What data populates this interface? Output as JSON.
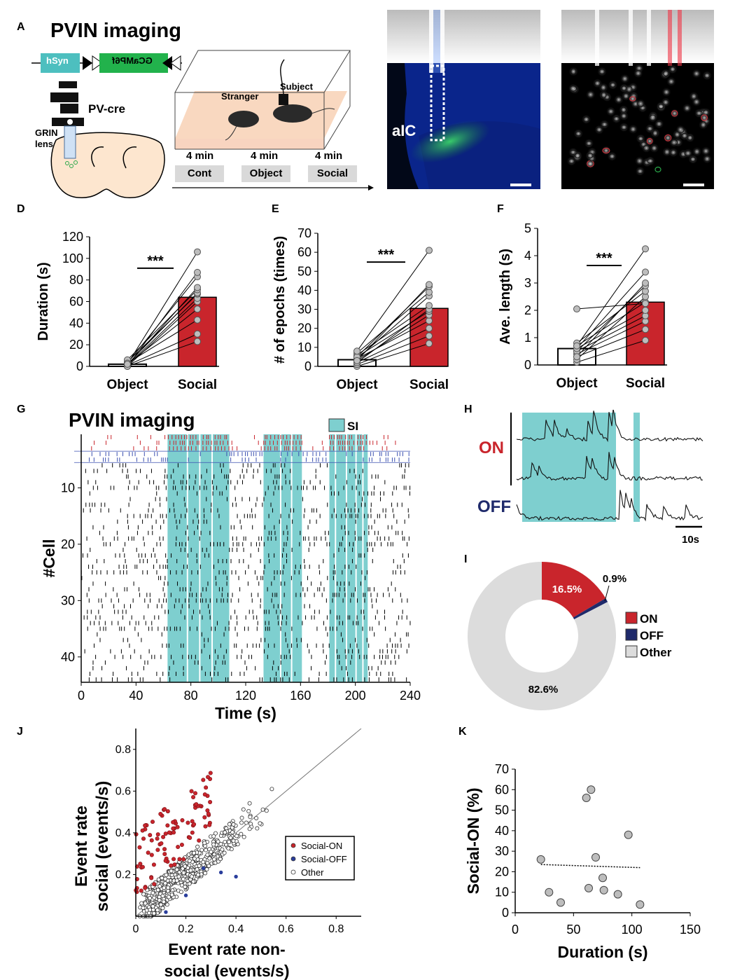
{
  "panels": {
    "A": {
      "letter": "A",
      "title": "PVIN imaging",
      "construct": {
        "promoter": "hSyn",
        "gene": "GCaMP6f"
      },
      "mouse_label": "PV-cre",
      "lens_label_1": "GRIN",
      "lens_label_2": "lens",
      "arena": {
        "stranger": "Stranger",
        "subject": "Subject"
      },
      "timeline": [
        {
          "duration": "4 min",
          "label": "Cont"
        },
        {
          "duration": "4 min",
          "label": "Object"
        },
        {
          "duration": "4 min",
          "label": "Social"
        }
      ],
      "histology_label": "aIC"
    },
    "D": {
      "letter": "D"
    },
    "E": {
      "letter": "E"
    },
    "F": {
      "letter": "F"
    },
    "G": {
      "letter": "G",
      "title": "PVIN imaging",
      "legend": "SI"
    },
    "H": {
      "letter": "H",
      "on": "ON",
      "off": "OFF",
      "scale": "10s"
    },
    "I": {
      "letter": "I"
    },
    "J": {
      "letter": "J"
    },
    "K": {
      "letter": "K"
    }
  },
  "colors": {
    "social_red": "#c9252c",
    "off_navy": "#1f2a6b",
    "si_teal": "#7ecfcf",
    "other_gray": "#dcdcdc"
  },
  "chart_data": [
    {
      "id": "D",
      "type": "bar",
      "ylabel": "Duration (s)",
      "categories": [
        "Object",
        "Social"
      ],
      "values": [
        2,
        64
      ],
      "ylim": [
        0,
        120
      ],
      "yticks": [
        0,
        20,
        40,
        60,
        80,
        100,
        120
      ],
      "significance": "***",
      "pairs": [
        [
          0,
          23
        ],
        [
          1,
          30
        ],
        [
          3,
          43
        ],
        [
          2,
          53
        ],
        [
          0,
          60
        ],
        [
          1,
          63
        ],
        [
          4,
          67
        ],
        [
          2,
          68
        ],
        [
          6,
          71
        ],
        [
          1,
          73
        ],
        [
          3,
          83
        ],
        [
          0,
          87
        ],
        [
          2,
          106
        ]
      ]
    },
    {
      "id": "E",
      "type": "bar",
      "ylabel": "# of epochs (times)",
      "categories": [
        "Object",
        "Social"
      ],
      "values": [
        3.5,
        30.5
      ],
      "ylim": [
        0,
        70
      ],
      "yticks": [
        0,
        10,
        20,
        30,
        40,
        50,
        60,
        70
      ],
      "significance": "***",
      "pairs": [
        [
          0,
          12
        ],
        [
          1,
          16
        ],
        [
          2,
          20
        ],
        [
          4,
          24
        ],
        [
          3,
          27
        ],
        [
          5,
          29
        ],
        [
          2,
          30
        ],
        [
          6,
          32
        ],
        [
          4,
          37
        ],
        [
          7,
          39
        ],
        [
          5,
          42
        ],
        [
          3,
          43
        ],
        [
          8,
          61
        ]
      ]
    },
    {
      "id": "F",
      "type": "bar",
      "ylabel": "Ave. length (s)",
      "categories": [
        "Object",
        "Social"
      ],
      "values": [
        0.6,
        2.3
      ],
      "ylim": [
        0,
        5
      ],
      "yticks": [
        0,
        1,
        2,
        3,
        4,
        5
      ],
      "significance": "***",
      "pairs": [
        [
          0.1,
          0.9
        ],
        [
          0.3,
          1.3
        ],
        [
          0.4,
          1.6
        ],
        [
          0.5,
          1.8
        ],
        [
          0.6,
          2.0
        ],
        [
          0.7,
          2.3
        ],
        [
          0.2,
          2.5
        ],
        [
          0.8,
          2.7
        ],
        [
          0.5,
          2.9
        ],
        [
          0.3,
          3.0
        ],
        [
          2.05,
          2.25
        ],
        [
          0.6,
          3.4
        ],
        [
          0.7,
          4.25
        ]
      ]
    },
    {
      "id": "G",
      "type": "raster",
      "xlabel": "Time (s)",
      "ylabel": "#Cell",
      "xticks": [
        0,
        40,
        80,
        120,
        160,
        200,
        240
      ],
      "yticks": [
        10,
        20,
        30,
        40
      ],
      "n_cells": 44,
      "on_cells": 3,
      "off_cells": 2,
      "si_epochs": [
        [
          63,
          77
        ],
        [
          78,
          86
        ],
        [
          87,
          95
        ],
        [
          96,
          108
        ],
        [
          133,
          145
        ],
        [
          146,
          153
        ],
        [
          154,
          161
        ],
        [
          181,
          185
        ],
        [
          186,
          193
        ],
        [
          194,
          200
        ],
        [
          201,
          205
        ],
        [
          206,
          209
        ]
      ]
    },
    {
      "id": "I",
      "type": "pie",
      "labels": [
        "ON",
        "OFF",
        "Other"
      ],
      "values": [
        16.5,
        0.9,
        82.6
      ],
      "value_labels": [
        "16.5%",
        "0.9%",
        "82.6%"
      ]
    },
    {
      "id": "J",
      "type": "scatter",
      "xlabel_1": "Event rate non-",
      "xlabel_2": "social (events/s)",
      "ylabel_1": "Event rate",
      "ylabel_2": "social (events/s)",
      "xticks": [
        0,
        0.2,
        0.4,
        0.6,
        0.8
      ],
      "yticks": [
        0.2,
        0.4,
        0.6,
        0.8
      ],
      "xlim": [
        0,
        0.9
      ],
      "ylim": [
        0,
        0.9
      ],
      "legend": [
        "Social-ON",
        "Social-OFF",
        "Other"
      ]
    },
    {
      "id": "K",
      "type": "scatter",
      "xlabel": "Duration (s)",
      "ylabel": "Social-ON (%)",
      "xticks": [
        0,
        50,
        100,
        150
      ],
      "yticks": [
        0,
        10,
        20,
        30,
        40,
        50,
        60,
        70
      ],
      "xlim": [
        0,
        150
      ],
      "ylim": [
        0,
        70
      ],
      "points": [
        [
          22,
          26
        ],
        [
          29,
          10
        ],
        [
          39,
          5
        ],
        [
          61,
          56
        ],
        [
          63,
          12
        ],
        [
          65,
          60
        ],
        [
          69,
          27
        ],
        [
          75,
          17
        ],
        [
          76,
          11
        ],
        [
          88,
          9
        ],
        [
          97,
          38
        ],
        [
          107,
          4
        ]
      ],
      "trend": [
        [
          22,
          23.5
        ],
        [
          107,
          22
        ]
      ]
    }
  ]
}
